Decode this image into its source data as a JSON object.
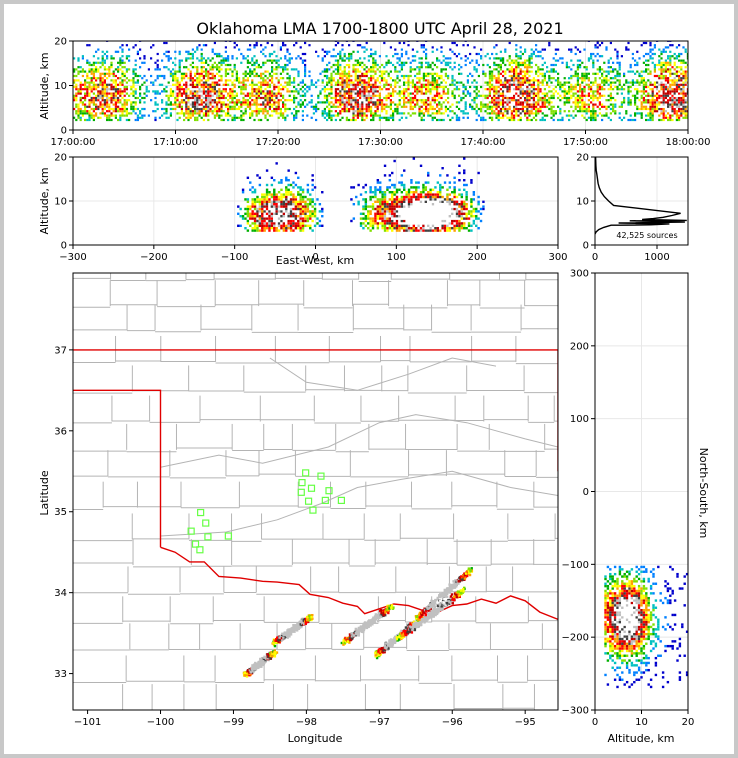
{
  "title": "Oklahoma LMA 1700-1800 UTC April 28, 2021",
  "colors": {
    "density": [
      "#0000cc",
      "#0080ff",
      "#00c0c0",
      "#00b000",
      "#80e000",
      "#ffff00",
      "#ffa000",
      "#ff0000",
      "#c00000",
      "#404040",
      "#c0c0c0",
      "#ffffff"
    ],
    "border": "#e00000",
    "county": "#b4b4b4",
    "stations": "#66ff44"
  },
  "chart_data": [
    {
      "type": "heatmap",
      "name": "altitude-vs-time",
      "xlabel": "",
      "ylabel": "Altitude, km",
      "xlim": [
        "17:00:00",
        "18:00:00"
      ],
      "ylim": [
        0,
        20
      ],
      "xticks": [
        "17:00:00",
        "17:10:00",
        "17:20:00",
        "17:30:00",
        "17:40:00",
        "17:50:00",
        "18:00:00"
      ],
      "yticks": [
        0,
        10,
        20
      ],
      "grid": true,
      "altitude_band_km": [
        2,
        15
      ],
      "peak_altitude_km": [
        5,
        9
      ]
    },
    {
      "type": "heatmap",
      "name": "altitude-vs-east-west",
      "xlabel": "East-West, km",
      "ylabel": "Altitude, km",
      "xlim": [
        -300,
        300
      ],
      "ylim": [
        0,
        20
      ],
      "xticks": [
        -300,
        -200,
        -100,
        0,
        100,
        200,
        300
      ],
      "yticks": [
        0,
        10,
        20
      ],
      "grid": true,
      "clusters": [
        {
          "x_range_km": [
            -100,
            10
          ],
          "alt_range_km": [
            3,
            20
          ]
        },
        {
          "x_range_km": [
            40,
            210
          ],
          "alt_range_km": [
            3,
            20
          ],
          "peak_x_km": 145,
          "peak_alt_km": 7
        }
      ]
    },
    {
      "type": "line",
      "name": "source-count-by-altitude",
      "xlim": [
        0,
        1500
      ],
      "ylim": [
        0,
        20
      ],
      "xticks": [
        0,
        1000
      ],
      "yticks": [
        0,
        10,
        20
      ],
      "annotation": "42,525 sources",
      "x": [
        0,
        20,
        60,
        140,
        260,
        380,
        560,
        760,
        940,
        1100,
        1240,
        1380,
        1480,
        1450,
        1200,
        900,
        600,
        400,
        300,
        220,
        150,
        100,
        70,
        50,
        40,
        30,
        20,
        15,
        10
      ],
      "y": [
        2.5,
        3.0,
        3.5,
        4.0,
        4.5,
        5.0,
        5.5,
        5.8,
        6.0,
        6.3,
        6.7,
        7.2,
        5.6,
        5.2,
        4.8,
        4.6,
        4.5,
        4.5,
        9,
        10,
        11,
        12,
        13,
        14,
        15,
        16,
        17,
        18,
        20
      ]
    },
    {
      "type": "scatter",
      "name": "plan-view-map",
      "xlabel": "Longitude",
      "ylabel": "Latitude",
      "xlim": [
        -101.2,
        -94.55
      ],
      "ylim": [
        32.55,
        37.95
      ],
      "xticks": [
        -101,
        -100,
        -99,
        -98,
        -97,
        -96,
        -95
      ],
      "yticks": [
        33,
        34,
        35,
        36,
        37
      ],
      "grid": true,
      "stations": [
        {
          "lon": -99.45,
          "lat": 34.99
        },
        {
          "lon": -99.38,
          "lat": 34.86
        },
        {
          "lon": -99.58,
          "lat": 34.76
        },
        {
          "lon": -99.35,
          "lat": 34.69
        },
        {
          "lon": -99.52,
          "lat": 34.6
        },
        {
          "lon": -99.46,
          "lat": 34.53
        },
        {
          "lon": -99.07,
          "lat": 34.7
        },
        {
          "lon": -98.01,
          "lat": 35.48
        },
        {
          "lon": -97.8,
          "lat": 35.44
        },
        {
          "lon": -98.06,
          "lat": 35.36
        },
        {
          "lon": -97.93,
          "lat": 35.29
        },
        {
          "lon": -98.07,
          "lat": 35.24
        },
        {
          "lon": -97.69,
          "lat": 35.26
        },
        {
          "lon": -97.74,
          "lat": 35.14
        },
        {
          "lon": -97.97,
          "lat": 35.13
        },
        {
          "lon": -97.52,
          "lat": 35.14
        },
        {
          "lon": -97.91,
          "lat": 35.02
        }
      ],
      "storm_lines": [
        {
          "from": [
            -98.85,
            33.0
          ],
          "to": [
            -98.45,
            33.28
          ]
        },
        {
          "from": [
            -98.45,
            33.4
          ],
          "to": [
            -97.95,
            33.72
          ]
        },
        {
          "from": [
            -97.5,
            33.4
          ],
          "to": [
            -96.85,
            33.85
          ]
        },
        {
          "from": [
            -97.05,
            33.25
          ],
          "to": [
            -96.5,
            33.65
          ]
        },
        {
          "from": [
            -96.75,
            33.45
          ],
          "to": [
            -95.85,
            34.05
          ]
        },
        {
          "from": [
            -96.5,
            33.7
          ],
          "to": [
            -95.75,
            34.3
          ]
        }
      ],
      "core": {
        "lon": -96.15,
        "lat": 33.9
      }
    },
    {
      "type": "heatmap",
      "name": "altitude-vs-north-south",
      "xlabel": "Altitude, km",
      "ylabel": "North-South, km",
      "xlim": [
        0,
        20
      ],
      "ylim": [
        -300,
        300
      ],
      "xticks": [
        0,
        10,
        20
      ],
      "yticks": [
        -300,
        -200,
        -100,
        0,
        100,
        200,
        300
      ],
      "grid": true,
      "cluster": {
        "alt_range_km": [
          2,
          20
        ],
        "ns_range_km": [
          -270,
          -105
        ],
        "peak_alt_km": 7,
        "peak_ns_km": -175
      }
    }
  ]
}
